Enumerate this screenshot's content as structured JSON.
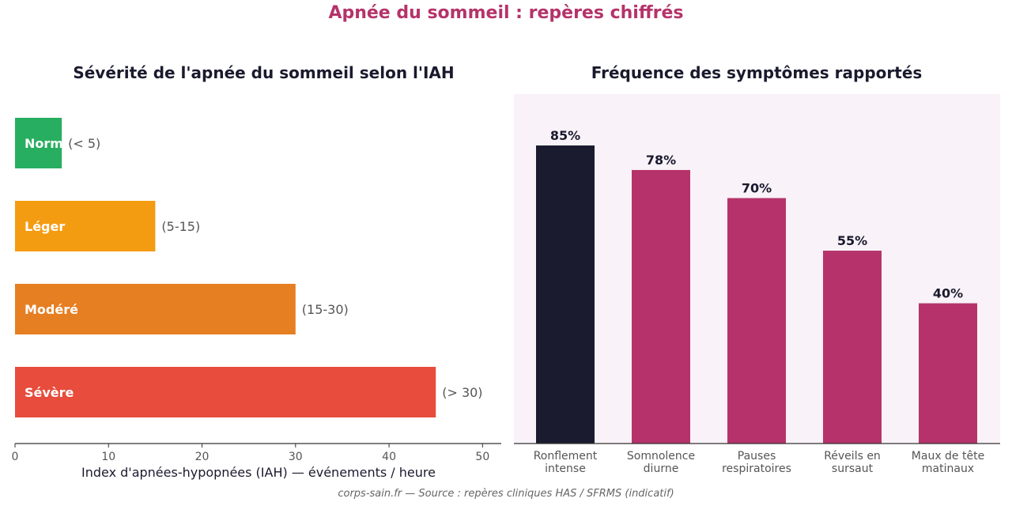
{
  "suptitle": "Apnée du sommeil : repères chiffrés",
  "footer": "corps-sain.fr — Source : repères cliniques HAS / SFRMS (indicatif)",
  "chart_data": [
    {
      "type": "bar",
      "orientation": "horizontal",
      "title": "Sévérité de l'apnée du sommeil selon l'IAH",
      "xlabel": "Index d'apnées-hypopnées (IAH) — événements / heure",
      "ylabel": "",
      "xlim": [
        0,
        52
      ],
      "xticks": [
        0,
        10,
        20,
        30,
        40,
        50
      ],
      "grid": false,
      "categories": [
        "Normal",
        "Léger",
        "Modéré",
        "Sévère"
      ],
      "values": [
        5,
        15,
        30,
        45
      ],
      "ranges": [
        "(< 5)",
        "(5-15)",
        "(15-30)",
        "(> 30)"
      ],
      "colors": [
        "#27ae60",
        "#f39c12",
        "#e67e22",
        "#e74c3c"
      ]
    },
    {
      "type": "bar",
      "title": "Fréquence des symptômes rapportés",
      "xlabel": "",
      "ylabel": "",
      "ylim": [
        0,
        100
      ],
      "grid": false,
      "background": "#f9f2f8",
      "categories": [
        [
          "Ronflement",
          "intense"
        ],
        [
          "Somnolence",
          "diurne"
        ],
        [
          "Pauses",
          "respiratoires"
        ],
        [
          "Réveils en",
          "sursaut"
        ],
        [
          "Maux de tête",
          "matinaux"
        ]
      ],
      "values": [
        85,
        78,
        70,
        55,
        40
      ],
      "value_labels": [
        "85%",
        "78%",
        "70%",
        "55%",
        "40%"
      ],
      "colors": [
        "#1a1b2e",
        "#b5336a",
        "#b5336a",
        "#b5336a",
        "#b5336a"
      ]
    }
  ]
}
